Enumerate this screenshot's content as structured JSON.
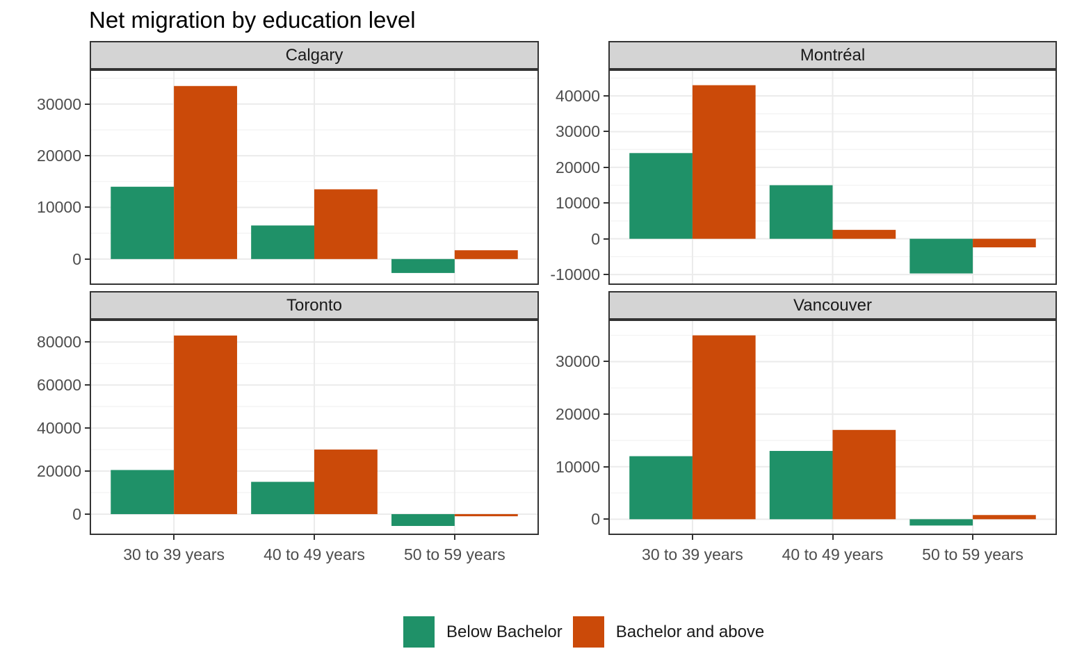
{
  "title": "Net migration by education level",
  "legend": {
    "items": [
      {
        "label": "Below Bachelor",
        "color": "#1f9168"
      },
      {
        "label": "Bachelor and above",
        "color": "#cb4a09"
      }
    ]
  },
  "colors": {
    "panel_border": "#333333",
    "strip_background": "#d4d4d4",
    "grid_major": "#ebebeb",
    "grid_minor": "#f2f2f2",
    "axis_text": "#4d4d4d",
    "strip_text": "#1a1a1a",
    "title_text": "#000000"
  },
  "chart_data": {
    "type": "bar",
    "title": "Net migration by education level",
    "xlabel": "",
    "ylabel": "",
    "grid": true,
    "legend_position": "bottom",
    "categories": [
      "30 to 39 years",
      "40 to 49 years",
      "50 to 59 years"
    ],
    "series_names": [
      "Below Bachelor",
      "Bachelor and above"
    ],
    "facets": [
      {
        "name": "Calgary",
        "yticks": [
          0,
          10000,
          20000,
          30000
        ],
        "ylim": [
          -5000,
          36700
        ],
        "minor_step": 5000,
        "series": [
          {
            "name": "Below Bachelor",
            "values": [
              14000,
              6500,
              -2700
            ]
          },
          {
            "name": "Bachelor and above",
            "values": [
              33500,
              13500,
              1700
            ]
          }
        ]
      },
      {
        "name": "Montréal",
        "yticks": [
          -10000,
          0,
          10000,
          20000,
          30000,
          40000
        ],
        "ylim": [
          -12900,
          47400
        ],
        "minor_step": 5000,
        "series": [
          {
            "name": "Below Bachelor",
            "values": [
              24000,
              15000,
              -9700
            ]
          },
          {
            "name": "Bachelor and above",
            "values": [
              43000,
              2500,
              -2400
            ]
          }
        ]
      },
      {
        "name": "Toronto",
        "yticks": [
          0,
          20000,
          40000,
          60000,
          80000
        ],
        "ylim": [
          -9700,
          90400
        ],
        "minor_step": 10000,
        "series": [
          {
            "name": "Below Bachelor",
            "values": [
              20500,
              15000,
              -5500
            ]
          },
          {
            "name": "Bachelor and above",
            "values": [
              83000,
              30000,
              -1000
            ]
          }
        ]
      },
      {
        "name": "Vancouver",
        "yticks": [
          0,
          10000,
          20000,
          30000
        ],
        "ylim": [
          -3000,
          38000
        ],
        "minor_step": 5000,
        "series": [
          {
            "name": "Below Bachelor",
            "values": [
              12000,
              13000,
              -1200
            ]
          },
          {
            "name": "Bachelor and above",
            "values": [
              35000,
              17000,
              800
            ]
          }
        ]
      }
    ]
  }
}
